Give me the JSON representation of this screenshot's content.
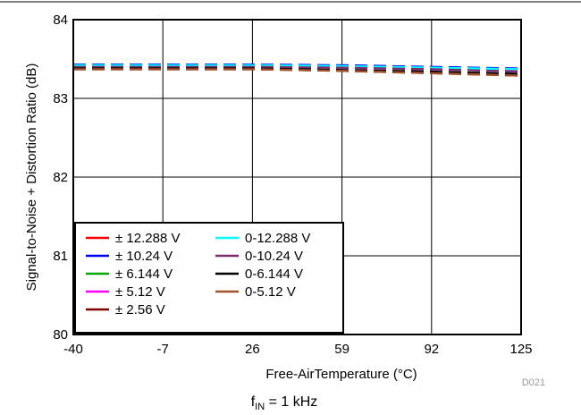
{
  "chart_data": {
    "type": "line",
    "xlabel": "Free-AirTemperature (°C)",
    "ylabel": "Signal-to-Noise + Distortion Ratio (dB)",
    "x": [
      -40,
      -7,
      26,
      59,
      92,
      125
    ],
    "xticks": [
      -40,
      -7,
      26,
      59,
      92,
      125
    ],
    "xlim": [
      -40,
      125
    ],
    "yticks": [
      80,
      81,
      82,
      83,
      84
    ],
    "ylim": [
      80,
      84
    ],
    "grid": true,
    "legend_position": "bottom-left",
    "series": [
      {
        "name": "± 12.288 V",
        "color": "#ff0000",
        "values": [
          83.42,
          83.42,
          83.42,
          83.41,
          83.39,
          83.37
        ]
      },
      {
        "name": "± 10.24 V",
        "color": "#0000ff",
        "values": [
          83.43,
          83.43,
          83.43,
          83.42,
          83.4,
          83.38
        ]
      },
      {
        "name": "± 6.144 V",
        "color": "#00aa00",
        "values": [
          83.41,
          83.41,
          83.41,
          83.4,
          83.38,
          83.36
        ]
      },
      {
        "name": "± 5.12 V",
        "color": "#ff00ff",
        "values": [
          83.4,
          83.4,
          83.4,
          83.39,
          83.37,
          83.35
        ]
      },
      {
        "name": "± 2.56 V",
        "color": "#800000",
        "values": [
          83.37,
          83.37,
          83.37,
          83.35,
          83.32,
          83.29
        ]
      },
      {
        "name": "0-12.288 V",
        "color": "#00ffff",
        "values": [
          83.42,
          83.42,
          83.42,
          83.41,
          83.39,
          83.37
        ]
      },
      {
        "name": "0-10.24 V",
        "color": "#7b2f6e",
        "values": [
          83.4,
          83.4,
          83.4,
          83.39,
          83.37,
          83.34
        ]
      },
      {
        "name": "0-6.144 V",
        "color": "#000000",
        "values": [
          83.38,
          83.38,
          83.38,
          83.36,
          83.34,
          83.31
        ]
      },
      {
        "name": "0-5.12 V",
        "color": "#a0522d",
        "values": [
          83.37,
          83.37,
          83.37,
          83.35,
          83.32,
          83.29
        ]
      }
    ]
  },
  "figure_code": "D021",
  "caption": {
    "main": "f",
    "sub": "IN",
    "rest": " = 1 kHz"
  }
}
